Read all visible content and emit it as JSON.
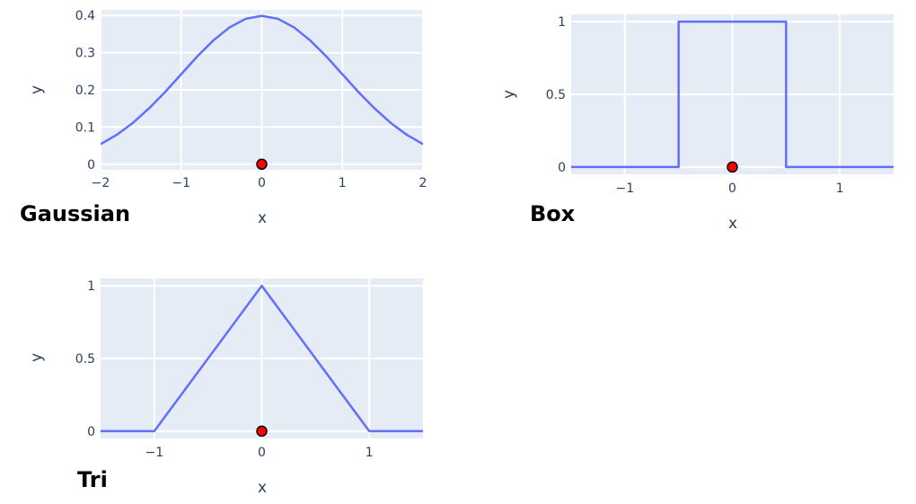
{
  "chart_data": [
    {
      "type": "line",
      "title": "Gaussian",
      "xlabel": "x",
      "ylabel": "y",
      "xlim": [
        -2,
        2
      ],
      "ylim": [
        -0.015,
        0.415
      ],
      "xticks": [
        -2,
        -1,
        0,
        1,
        2
      ],
      "xtick_labels": [
        "−2",
        "−1",
        "0",
        "1",
        "2"
      ],
      "yticks": [
        0,
        0.1,
        0.2,
        0.3,
        0.4
      ],
      "ytick_labels": [
        "0",
        "0.1",
        "0.2",
        "0.3",
        "0.4"
      ],
      "grid": true,
      "series": [
        {
          "x": [
            -2,
            -1.8,
            -1.6,
            -1.4,
            -1.2,
            -1.0,
            -0.8,
            -0.6,
            -0.4,
            -0.2,
            0,
            0.2,
            0.4,
            0.6,
            0.8,
            1.0,
            1.2,
            1.4,
            1.6,
            1.8,
            2.0
          ],
          "y": [
            0.054,
            0.079,
            0.111,
            0.15,
            0.194,
            0.242,
            0.29,
            0.333,
            0.368,
            0.391,
            0.399,
            0.391,
            0.368,
            0.333,
            0.29,
            0.242,
            0.194,
            0.15,
            0.111,
            0.079,
            0.054
          ]
        }
      ],
      "marker": {
        "x": 0,
        "y": 0
      }
    },
    {
      "type": "line",
      "title": "Box",
      "xlabel": "x",
      "ylabel": "y",
      "xlim": [
        -1.5,
        1.5
      ],
      "ylim": [
        -0.05,
        1.05
      ],
      "xticks": [
        -1,
        0,
        1
      ],
      "xtick_labels": [
        "−1",
        "0",
        "1"
      ],
      "yticks": [
        0,
        0.5,
        1
      ],
      "ytick_labels": [
        "0",
        "0.5",
        "1"
      ],
      "grid": true,
      "series": [
        {
          "x": [
            -1.5,
            -0.5,
            -0.5,
            0.5,
            0.5,
            1.5
          ],
          "y": [
            0,
            0,
            1,
            1,
            0,
            0
          ]
        }
      ],
      "marker": {
        "x": 0,
        "y": 0
      }
    },
    {
      "type": "line",
      "title": "Tri",
      "xlabel": "x",
      "ylabel": "y",
      "xlim": [
        -1.5,
        1.5
      ],
      "ylim": [
        -0.05,
        1.05
      ],
      "xticks": [
        -1,
        0,
        1
      ],
      "xtick_labels": [
        "−1",
        "0",
        "1"
      ],
      "yticks": [
        0,
        0.5,
        1
      ],
      "ytick_labels": [
        "0",
        "0.5",
        "1"
      ],
      "grid": true,
      "series": [
        {
          "x": [
            -1.5,
            -1,
            0,
            1,
            1.5
          ],
          "y": [
            0,
            0,
            1,
            0,
            0
          ]
        }
      ],
      "marker": {
        "x": 0,
        "y": 0
      }
    }
  ],
  "colors": {
    "plot_bg": "#e5ecf6",
    "grid": "#ffffff",
    "line": "#636efa",
    "marker_fill": "#ff0000",
    "marker_edge": "#000000",
    "tick_text": "#2a3f5f",
    "title_text": "#000000"
  }
}
